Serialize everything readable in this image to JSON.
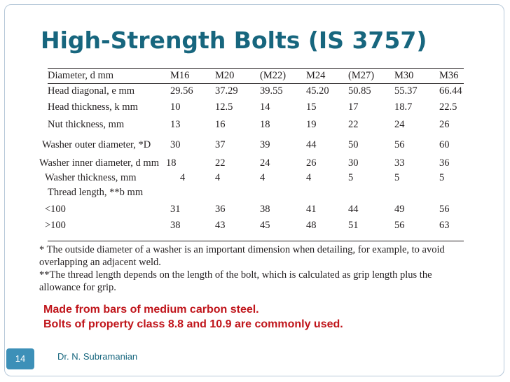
{
  "slide": {
    "title": "High-Strength Bolts (IS 3757)",
    "page_number": "14",
    "author": "Dr. N. Subramanian"
  },
  "table": {
    "header": {
      "label": "Diameter, d mm",
      "sizes": [
        "M16",
        "M20",
        "(M22)",
        "M24",
        "(M27)",
        "M30",
        "M36"
      ]
    },
    "rows": [
      {
        "label": "Head diagonal, e mm",
        "values": [
          "29.56",
          "37.29",
          "39.55",
          "45.20",
          "50.85",
          "55.37",
          "66.44"
        ]
      },
      {
        "label": "Head thickness, k mm",
        "values": [
          "10",
          "12.5",
          "14",
          "15",
          "17",
          "18.7",
          "22.5"
        ]
      },
      {
        "label": "Nut thickness, mm",
        "values": [
          "13",
          "16",
          "18",
          "19",
          "22",
          "24",
          "26"
        ]
      },
      {
        "label": "Washer outer diameter, *D",
        "values": [
          "30",
          "37",
          "39",
          "44",
          "50",
          "56",
          "60"
        ]
      },
      {
        "label": "Washer inner diameter, d mm",
        "values": [
          "18",
          "22",
          "24",
          "26",
          "30",
          "33",
          "36"
        ]
      },
      {
        "label": "Washer thickness,  mm",
        "values": [
          "4",
          "4",
          "4",
          "4",
          "5",
          "5",
          "5"
        ]
      },
      {
        "label": "Thread length, **b mm",
        "values": []
      },
      {
        "label": "<100",
        "values": [
          "31",
          "36",
          "38",
          "41",
          "44",
          "49",
          "56"
        ]
      },
      {
        "label": ">100",
        "values": [
          "38",
          "43",
          "45",
          "48",
          "51",
          "56",
          "63"
        ]
      }
    ]
  },
  "footnotes": [
    "* The outside diameter of a washer is an important dimension when detailing, for example, to avoid overlapping an adjacent weld.",
    "**The thread length depends on the length of the bolt, which is calculated as grip length plus the allowance for grip."
  ],
  "notes": [
    "Made from bars of medium carbon steel.",
    "Bolts of property class 8.8 and 10.9 are commonly used."
  ],
  "colors": {
    "title": "#17667e",
    "notes": "#c0151b",
    "badge": "#3d90b8"
  }
}
